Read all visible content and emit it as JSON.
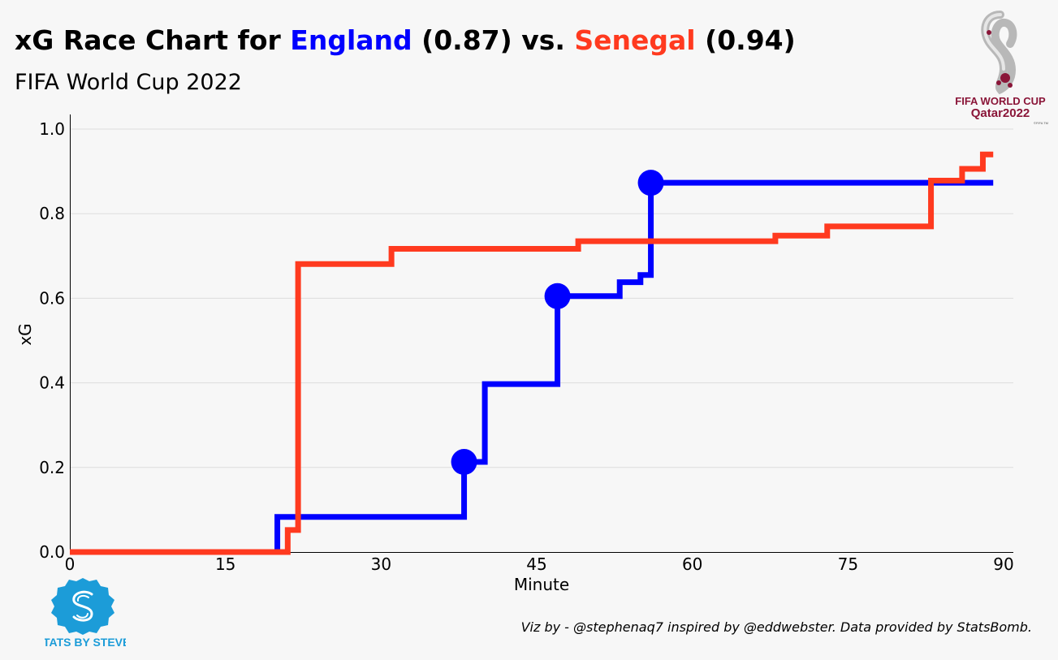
{
  "header": {
    "title_prefix": "xG Race Chart for ",
    "team1": "England",
    "team1_xg": " (0.87) vs. ",
    "team2": "Senegal",
    "team2_xg": " (0.94)",
    "subtitle": "FIFA World Cup 2022"
  },
  "logos": {
    "world_cup_text_1": "FIFA WORLD CUP",
    "world_cup_text_2": "Qatar2022",
    "world_cup_small": "©FIFA TM",
    "sbs_text": "STATS BY STEVE"
  },
  "footer": {
    "credit": "Viz by - @stephenaq7 inspired by @eddwebster. Data provided by StatsBomb."
  },
  "colors": {
    "england": "#0000ff",
    "senegal": "#ff3a1f",
    "background": "#f7f7f7",
    "grid": "#dddddd",
    "logo_blue": "#1c9cd8",
    "logo_red": "#8a1538"
  },
  "chart_data": {
    "type": "line",
    "step": "post",
    "xlabel": "Minute",
    "ylabel": "xG",
    "xlim": [
      0,
      90
    ],
    "ylim": [
      0,
      1.0
    ],
    "xticks": [
      0,
      15,
      30,
      45,
      60,
      75,
      90
    ],
    "yticks": [
      "0.0",
      "0.2",
      "0.4",
      "0.6",
      "0.8",
      "1.0"
    ],
    "grid": "horizontal",
    "series": [
      {
        "name": "England",
        "color": "#0000ff",
        "points": [
          [
            0,
            0
          ],
          [
            20,
            0.083
          ],
          [
            38,
            0.213
          ],
          [
            40,
            0.397
          ],
          [
            47,
            0.605
          ],
          [
            53,
            0.638
          ],
          [
            55,
            0.655
          ],
          [
            56,
            0.873
          ],
          [
            89,
            0.873
          ]
        ],
        "goals": [
          [
            38,
            0.213
          ],
          [
            47,
            0.605
          ],
          [
            56,
            0.873
          ]
        ]
      },
      {
        "name": "Senegal",
        "color": "#ff3a1f",
        "points": [
          [
            0,
            0
          ],
          [
            21,
            0.052
          ],
          [
            22,
            0.681
          ],
          [
            31,
            0.717
          ],
          [
            49,
            0.735
          ],
          [
            68,
            0.748
          ],
          [
            73,
            0.77
          ],
          [
            83,
            0.878
          ],
          [
            86,
            0.906
          ],
          [
            88,
            0.94
          ],
          [
            89,
            0.94
          ]
        ],
        "goals": []
      }
    ]
  }
}
